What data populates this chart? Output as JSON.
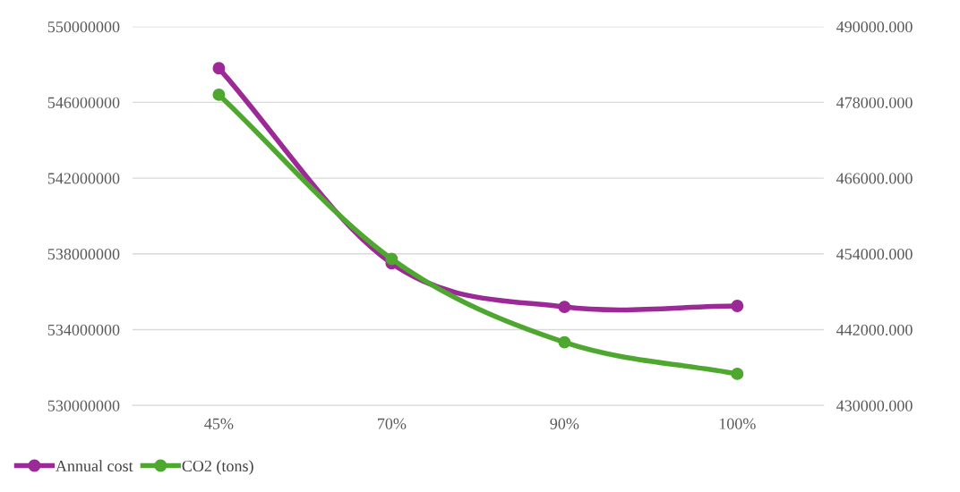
{
  "chart_data": {
    "type": "line",
    "categories": [
      "45%",
      "70%",
      "90%",
      "100%"
    ],
    "series": [
      {
        "name": "Annual cost",
        "color": "#9c2a96",
        "values": [
          547800000,
          537500000,
          535200000,
          535250000
        ]
      },
      {
        "name": "CO2 (tons)",
        "color": "#4ea72e",
        "axis": "y2",
        "values": [
          479200,
          453200,
          440000,
          435000
        ]
      }
    ],
    "ylim": [
      530000000,
      550000000
    ],
    "yticks": [
      530000000,
      534000000,
      538000000,
      542000000,
      546000000,
      550000000
    ],
    "y2lim": [
      430000,
      490000
    ],
    "y2ticks": [
      {
        "value": 430000,
        "label": "430000.000"
      },
      {
        "value": 442000,
        "label": "442000.000"
      },
      {
        "value": 454000,
        "label": "454000.000"
      },
      {
        "value": 466000,
        "label": "466000.000"
      },
      {
        "value": 478000,
        "label": "478000.000"
      },
      {
        "value": 490000,
        "label": "490000.000"
      }
    ],
    "grid": "y",
    "legend": "bottom left",
    "marker": "circle",
    "line_style": "solid"
  }
}
